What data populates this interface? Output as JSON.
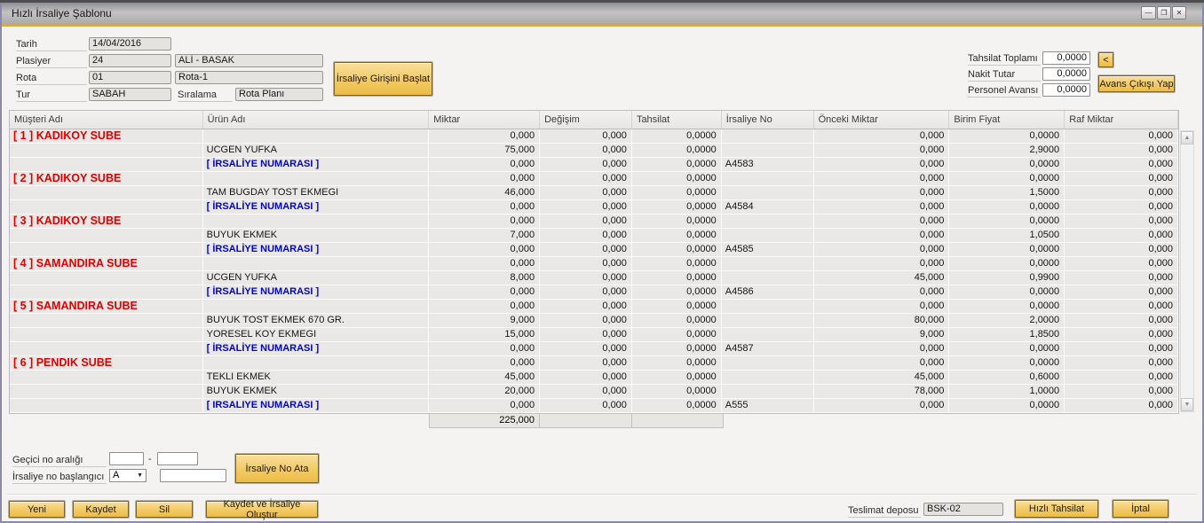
{
  "window": {
    "title": "Hızlı İrsaliye Şablonu",
    "controls": {
      "minimize": "—",
      "restore": "❐",
      "close": "✕"
    }
  },
  "header": {
    "tarih_label": "Tarih",
    "tarih_value": "14/04/2016",
    "plasiyer_label": "Plasiyer",
    "plasiyer_code": "24",
    "plasiyer_name": "ALİ - BASAK",
    "rota_label": "Rota",
    "rota_code": "01",
    "rota_name": "Rota-1",
    "tur_label": "Tur",
    "tur_value": "SABAH",
    "siralama_label": "Sıralama",
    "siralama_value": "Rota Planı",
    "start_button": "İrsaliye Girişini Başlat",
    "tahsilat_toplami_label": "Tahsilat Toplamı",
    "tahsilat_toplami_value": "0,0000",
    "nakit_tutar_label": "Nakit Tutar",
    "nakit_tutar_value": "0,0000",
    "personel_avansi_label": "Personel Avansı",
    "personel_avansi_value": "0,0000",
    "collapse_button": "<",
    "avans_button": "Avans Çıkışı Yap"
  },
  "table": {
    "columns": [
      "Müşteri Adı",
      "Ürün Adı",
      "Miktar",
      "Değişim",
      "Tahsilat",
      "İrsaliye No",
      "Önceki Miktar",
      "Birim Fiyat",
      "Raf Miktar"
    ],
    "rows": [
      {
        "type": "group",
        "label": "[ 1 ] KADIKOY SUBE",
        "miktar": "0,000",
        "degisim": "0,000",
        "tahsilat": "0,0000",
        "irsaliye_no": "",
        "onceki": "0,000",
        "birim": "0,0000",
        "raf": "0,000"
      },
      {
        "type": "product",
        "label": "UCGEN YUFKA",
        "miktar": "75,000",
        "degisim": "0,000",
        "tahsilat": "0,0000",
        "irsaliye_no": "",
        "onceki": "0,000",
        "birim": "2,9000",
        "raf": "0,000"
      },
      {
        "type": "irsaliye",
        "label": "[ İRSALİYE NUMARASI ]",
        "miktar": "0,000",
        "degisim": "0,000",
        "tahsilat": "0,0000",
        "irsaliye_no": "A4583",
        "onceki": "0,000",
        "birim": "0,0000",
        "raf": "0,000"
      },
      {
        "type": "group",
        "label": "[ 2 ] KADIKOY SUBE",
        "miktar": "0,000",
        "degisim": "0,000",
        "tahsilat": "0,0000",
        "irsaliye_no": "",
        "onceki": "0,000",
        "birim": "0,0000",
        "raf": "0,000"
      },
      {
        "type": "product",
        "label": "TAM BUGDAY TOST EKMEGI",
        "miktar": "46,000",
        "degisim": "0,000",
        "tahsilat": "0,0000",
        "irsaliye_no": "",
        "onceki": "0,000",
        "birim": "1,5000",
        "raf": "0,000"
      },
      {
        "type": "irsaliye",
        "label": "[ İRSALİYE NUMARASI ]",
        "miktar": "0,000",
        "degisim": "0,000",
        "tahsilat": "0,0000",
        "irsaliye_no": "A4584",
        "onceki": "0,000",
        "birim": "0,0000",
        "raf": "0,000"
      },
      {
        "type": "group",
        "label": "[ 3 ] KADIKOY SUBE",
        "miktar": "0,000",
        "degisim": "0,000",
        "tahsilat": "0,0000",
        "irsaliye_no": "",
        "onceki": "0,000",
        "birim": "0,0000",
        "raf": "0,000"
      },
      {
        "type": "product",
        "label": "BUYUK EKMEK",
        "miktar": "7,000",
        "degisim": "0,000",
        "tahsilat": "0,0000",
        "irsaliye_no": "",
        "onceki": "0,000",
        "birim": "1,0500",
        "raf": "0,000"
      },
      {
        "type": "irsaliye",
        "label": "[ İRSALİYE NUMARASI ]",
        "miktar": "0,000",
        "degisim": "0,000",
        "tahsilat": "0,0000",
        "irsaliye_no": "A4585",
        "onceki": "0,000",
        "birim": "0,0000",
        "raf": "0,000"
      },
      {
        "type": "group",
        "label": "[ 4 ] SAMANDIRA SUBE",
        "miktar": "0,000",
        "degisim": "0,000",
        "tahsilat": "0,0000",
        "irsaliye_no": "",
        "onceki": "0,000",
        "birim": "0,0000",
        "raf": "0,000"
      },
      {
        "type": "product",
        "label": "UCGEN YUFKA",
        "miktar": "8,000",
        "degisim": "0,000",
        "tahsilat": "0,0000",
        "irsaliye_no": "",
        "onceki": "45,000",
        "birim": "0,9900",
        "raf": "0,000"
      },
      {
        "type": "irsaliye",
        "label": "[ İRSALİYE NUMARASI ]",
        "miktar": "0,000",
        "degisim": "0,000",
        "tahsilat": "0,0000",
        "irsaliye_no": "A4586",
        "onceki": "0,000",
        "birim": "0,0000",
        "raf": "0,000"
      },
      {
        "type": "group",
        "label": "[ 5 ] SAMANDIRA SUBE",
        "miktar": "0,000",
        "degisim": "0,000",
        "tahsilat": "0,0000",
        "irsaliye_no": "",
        "onceki": "0,000",
        "birim": "0,0000",
        "raf": "0,000"
      },
      {
        "type": "product",
        "label": "BUYUK TOST EKMEK 670 GR.",
        "miktar": "9,000",
        "degisim": "0,000",
        "tahsilat": "0,0000",
        "irsaliye_no": "",
        "onceki": "80,000",
        "birim": "2,0000",
        "raf": "0,000"
      },
      {
        "type": "product",
        "label": "YORESEL KOY EKMEGI",
        "miktar": "15,000",
        "degisim": "0,000",
        "tahsilat": "0,0000",
        "irsaliye_no": "",
        "onceki": "9,000",
        "birim": "1,8500",
        "raf": "0,000"
      },
      {
        "type": "irsaliye",
        "label": "[ İRSALİYE NUMARASI ]",
        "miktar": "0,000",
        "degisim": "0,000",
        "tahsilat": "0,0000",
        "irsaliye_no": "A4587",
        "onceki": "0,000",
        "birim": "0,0000",
        "raf": "0,000"
      },
      {
        "type": "group",
        "label": "[ 6 ] PENDIK SUBE",
        "miktar": "0,000",
        "degisim": "0,000",
        "tahsilat": "0,0000",
        "irsaliye_no": "",
        "onceki": "0,000",
        "birim": "0,0000",
        "raf": "0,000"
      },
      {
        "type": "product",
        "label": "TEKLI EKMEK",
        "miktar": "45,000",
        "degisim": "0,000",
        "tahsilat": "0,0000",
        "irsaliye_no": "",
        "onceki": "45,000",
        "birim": "0,6000",
        "raf": "0,000"
      },
      {
        "type": "product",
        "label": "BUYUK EKMEK",
        "miktar": "20,000",
        "degisim": "0,000",
        "tahsilat": "0,0000",
        "irsaliye_no": "",
        "onceki": "78,000",
        "birim": "1,0000",
        "raf": "0,000"
      },
      {
        "type": "irsaliye",
        "label": "[ IRSALIYE NUMARASI ]",
        "miktar": "0,000",
        "degisim": "0,000",
        "tahsilat": "0,0000",
        "irsaliye_no": "A555",
        "onceki": "0,000",
        "birim": "0,0000",
        "raf": "0,000"
      }
    ],
    "total_miktar": "225,000",
    "scrollbar": {
      "up_icon": "▲",
      "down_icon": "▼"
    }
  },
  "footer": {
    "gecici_label": "Geçici no aralığı",
    "gecici_from": "",
    "gecici_to": "",
    "dash": "-",
    "baslangic_label": "İrsaliye no başlangıcı",
    "prefix_value": "A",
    "prefix_arrow": "▼",
    "irsaliye_no_input": "",
    "assign_button": "İrsaliye No Ata",
    "yeni_button": "Yeni",
    "kaydet_button": "Kaydet",
    "sil_button": "Sil",
    "kaydet_olustur_button": "Kaydet ve İrsaliye Oluştur",
    "teslimat_label": "Teslimat deposu",
    "teslimat_value": "BSK-02",
    "hizli_tahsilat_button": "Hızlı Tahsilat",
    "iptal_button": "İptal"
  },
  "colors": {
    "accent_gold": "#f0ab00",
    "group_red": "#e00000",
    "irsaliye_blue": "#0000e0",
    "frame_purple": "#8a88ac"
  }
}
